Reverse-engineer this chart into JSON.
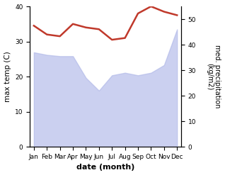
{
  "months": [
    "Jan",
    "Feb",
    "Mar",
    "Apr",
    "May",
    "Jun",
    "Jul",
    "Aug",
    "Sep",
    "Oct",
    "Nov",
    "Dec"
  ],
  "x": [
    0,
    1,
    2,
    3,
    4,
    5,
    6,
    7,
    8,
    9,
    10,
    11
  ],
  "temp": [
    34.5,
    32.0,
    31.5,
    35.0,
    34.0,
    33.5,
    30.5,
    31.0,
    38.0,
    40.0,
    38.5,
    37.5
  ],
  "precip": [
    37.0,
    36.0,
    35.5,
    35.5,
    27.0,
    22.0,
    28.0,
    29.0,
    28.0,
    29.0,
    32.0,
    46.0
  ],
  "temp_color": "#c0392b",
  "precip_fill_color": "#b0b8e8",
  "precip_fill_alpha": 0.65,
  "ylabel_left": "max temp (C)",
  "ylabel_right": "med. precipitation\n(kg/m2)",
  "xlabel": "date (month)",
  "ylim_left": [
    0,
    40
  ],
  "ylim_right": [
    0,
    55
  ],
  "yticks_left": [
    0,
    10,
    20,
    30,
    40
  ],
  "yticks_right": [
    0,
    10,
    20,
    30,
    40,
    50
  ],
  "temp_linewidth": 1.8,
  "bg_color": "#ffffff"
}
